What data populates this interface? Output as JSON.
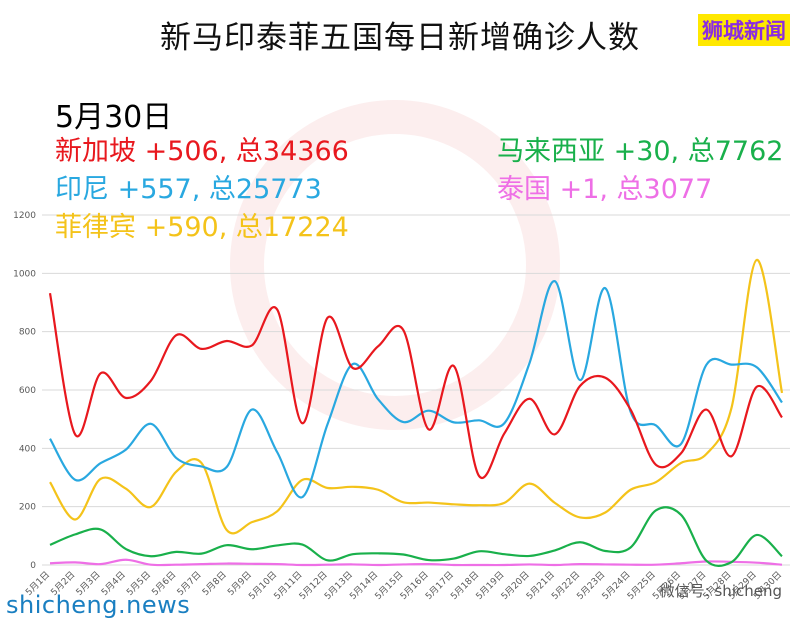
{
  "header": {
    "title": "新马印泰菲五国每日新增确诊人数",
    "brand": "狮城新闻"
  },
  "summary": {
    "date": "5月30日",
    "singapore": "新加坡 +506, 总34366",
    "indonesia": "印尼 +557, 总25773",
    "philippines": "菲律宾 +590, 总17224",
    "malaysia": "马来西亚 +30, 总7762",
    "thailand": "泰国 +1, 总3077"
  },
  "footer": {
    "site": "shicheng.news",
    "wechat": "微信号: shicheng"
  },
  "colors": {
    "singapore": "#e8181e",
    "indonesia": "#29a8e0",
    "philippines": "#f4c31a",
    "malaysia": "#19b04b",
    "thailand": "#ee6fe6"
  },
  "chart_data": {
    "type": "line",
    "categories": [
      "5月1日",
      "5月2日",
      "5月3日",
      "5月4日",
      "5月5日",
      "5月6日",
      "5月7日",
      "5月8日",
      "5月9日",
      "5月10日",
      "5月11日",
      "5月12日",
      "5月13日",
      "5月14日",
      "5月15日",
      "5月16日",
      "5月17日",
      "5月18日",
      "5月19日",
      "5月20日",
      "5月21日",
      "5月22日",
      "5月23日",
      "5月24日",
      "5月25日",
      "5月26日",
      "5月27日",
      "5月28日",
      "5月29日",
      "5月30日"
    ],
    "y_ticks": [
      0,
      200,
      400,
      600,
      800,
      1000,
      1200
    ],
    "ylim": [
      0,
      1200
    ],
    "series": [
      {
        "key": "singapore",
        "values": [
          932,
          447,
          657,
          573,
          632,
          788,
          741,
          768,
          753,
          876,
          486,
          848,
          675,
          750,
          805,
          465,
          682,
          305,
          451,
          570,
          448,
          614,
          642,
          533,
          344,
          383,
          533,
          373,
          611,
          506
        ]
      },
      {
        "key": "indonesia",
        "values": [
          433,
          292,
          349,
          395,
          484,
          367,
          338,
          336,
          533,
          387,
          233,
          484,
          689,
          568,
          490,
          529,
          489,
          496,
          486,
          693,
          973,
          634,
          949,
          526,
          479,
          415,
          686,
          687,
          678,
          557
        ]
      },
      {
        "key": "philippines",
        "values": [
          284,
          156,
          295,
          262,
          199,
          320,
          350,
          120,
          147,
          184,
          292,
          264,
          268,
          258,
          215,
          214,
          208,
          205,
          213,
          279,
          213,
          163,
          180,
          258,
          284,
          350,
          380,
          539,
          1046,
          590
        ]
      },
      {
        "key": "malaysia",
        "values": [
          69,
          105,
          122,
          55,
          30,
          45,
          39,
          68,
          54,
          67,
          70,
          16,
          37,
          40,
          36,
          17,
          22,
          47,
          37,
          31,
          50,
          78,
          48,
          60,
          187,
          172,
          15,
          10,
          103,
          30
        ]
      },
      {
        "key": "thailand",
        "values": [
          6,
          9,
          3,
          18,
          1,
          1,
          3,
          5,
          4,
          3,
          0,
          1,
          2,
          0,
          2,
          3,
          0,
          0,
          0,
          2,
          0,
          3,
          2,
          1,
          1,
          6,
          12,
          11,
          8,
          1
        ]
      }
    ]
  }
}
